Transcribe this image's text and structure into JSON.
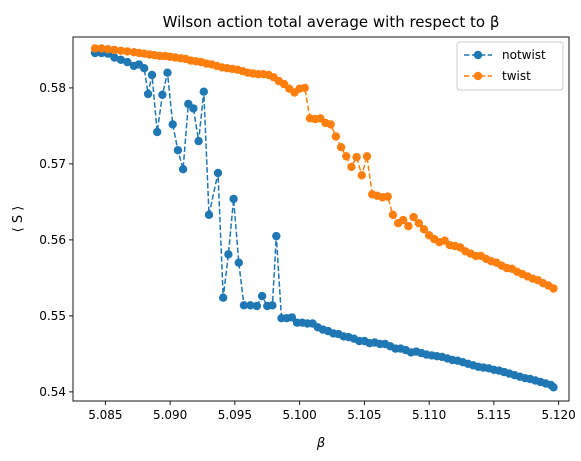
{
  "chart_data": {
    "type": "line",
    "title": "Wilson action total average with respect to β",
    "xlabel": "β",
    "ylabel": "⟨ S ⟩",
    "xlim": [
      5.0825,
      5.1208
    ],
    "ylim": [
      0.5388,
      0.5867
    ],
    "xticks": [
      5.085,
      5.09,
      5.095,
      5.1,
      5.105,
      5.11,
      5.115,
      5.12
    ],
    "xtick_labels": [
      "5.085",
      "5.090",
      "5.095",
      "5.100",
      "5.105",
      "5.110",
      "5.115",
      "5.120"
    ],
    "yticks": [
      0.54,
      0.55,
      0.56,
      0.57,
      0.58
    ],
    "ytick_labels": [
      "0.54",
      "0.55",
      "0.56",
      "0.57",
      "0.58"
    ],
    "grid": false,
    "legend_position": "top-right",
    "series": [
      {
        "name": "notwist",
        "color": "#1f77b4",
        "style": "dashed line with circle markers",
        "points": [
          [
            5.0842,
            0.5846
          ],
          [
            5.0847,
            0.5846
          ],
          [
            5.0852,
            0.5845
          ],
          [
            5.0857,
            0.584
          ],
          [
            5.0862,
            0.5837
          ],
          [
            5.0867,
            0.5834
          ],
          [
            5.0872,
            0.5829
          ],
          [
            5.0876,
            0.5831
          ],
          [
            5.088,
            0.5826
          ],
          [
            5.0883,
            0.5792
          ],
          [
            5.0886,
            0.5817
          ],
          [
            5.089,
            0.5742
          ],
          [
            5.0894,
            0.5791
          ],
          [
            5.0898,
            0.582
          ],
          [
            5.0902,
            0.5752
          ],
          [
            5.0906,
            0.5718
          ],
          [
            5.091,
            0.5693
          ],
          [
            5.0914,
            0.5779
          ],
          [
            5.0918,
            0.5773
          ],
          [
            5.0922,
            0.573
          ],
          [
            5.0926,
            0.5795
          ],
          [
            5.093,
            0.5633
          ],
          [
            5.0937,
            0.5688
          ],
          [
            5.0941,
            0.5524
          ],
          [
            5.0945,
            0.5581
          ],
          [
            5.0949,
            0.5654
          ],
          [
            5.0953,
            0.557
          ],
          [
            5.0957,
            0.5514
          ],
          [
            5.0962,
            0.5514
          ],
          [
            5.0967,
            0.5513
          ],
          [
            5.0971,
            0.5526
          ],
          [
            5.0975,
            0.5513
          ],
          [
            5.0979,
            0.5514
          ],
          [
            5.0982,
            0.5605
          ],
          [
            5.0986,
            0.5497
          ],
          [
            5.099,
            0.5497
          ],
          [
            5.0994,
            0.5498
          ],
          [
            5.0998,
            0.5491
          ],
          [
            5.1002,
            0.5491
          ],
          [
            5.1006,
            0.549
          ],
          [
            5.101,
            0.549
          ],
          [
            5.1014,
            0.5485
          ],
          [
            5.1018,
            0.5482
          ],
          [
            5.1022,
            0.548
          ],
          [
            5.1026,
            0.5477
          ],
          [
            5.103,
            0.5476
          ],
          [
            5.1034,
            0.5473
          ],
          [
            5.1038,
            0.5472
          ],
          [
            5.1042,
            0.547
          ],
          [
            5.1046,
            0.5467
          ],
          [
            5.105,
            0.5467
          ],
          [
            5.1054,
            0.5464
          ],
          [
            5.1058,
            0.5465
          ],
          [
            5.1062,
            0.5463
          ],
          [
            5.1066,
            0.5463
          ],
          [
            5.107,
            0.546
          ],
          [
            5.1074,
            0.5457
          ],
          [
            5.1078,
            0.5457
          ],
          [
            5.1082,
            0.5455
          ],
          [
            5.1086,
            0.5452
          ],
          [
            5.109,
            0.5453
          ],
          [
            5.1094,
            0.5451
          ],
          [
            5.1098,
            0.5449
          ],
          [
            5.1102,
            0.5448
          ],
          [
            5.1106,
            0.5447
          ],
          [
            5.111,
            0.5446
          ],
          [
            5.1114,
            0.5444
          ],
          [
            5.1118,
            0.5442
          ],
          [
            5.1122,
            0.5441
          ],
          [
            5.1126,
            0.5439
          ],
          [
            5.113,
            0.5437
          ],
          [
            5.1134,
            0.5435
          ],
          [
            5.1138,
            0.5433
          ],
          [
            5.1142,
            0.5432
          ],
          [
            5.1146,
            0.5431
          ],
          [
            5.115,
            0.5429
          ],
          [
            5.1154,
            0.5428
          ],
          [
            5.1158,
            0.5426
          ],
          [
            5.1162,
            0.5424
          ],
          [
            5.1166,
            0.5422
          ],
          [
            5.117,
            0.542
          ],
          [
            5.1174,
            0.5418
          ],
          [
            5.1178,
            0.5417
          ],
          [
            5.1182,
            0.5415
          ],
          [
            5.1186,
            0.5413
          ],
          [
            5.119,
            0.5411
          ],
          [
            5.1194,
            0.5409
          ],
          [
            5.1196,
            0.5406
          ]
        ]
      },
      {
        "name": "twist",
        "color": "#ff7f0e",
        "style": "dashed line with circle markers",
        "points": [
          [
            5.0842,
            0.5852
          ],
          [
            5.0847,
            0.5852
          ],
          [
            5.0852,
            0.5851
          ],
          [
            5.0857,
            0.585
          ],
          [
            5.0862,
            0.5849
          ],
          [
            5.0867,
            0.5848
          ],
          [
            5.0872,
            0.5847
          ],
          [
            5.0876,
            0.5846
          ],
          [
            5.088,
            0.5845
          ],
          [
            5.0884,
            0.5844
          ],
          [
            5.0888,
            0.5843
          ],
          [
            5.0892,
            0.5842
          ],
          [
            5.0896,
            0.5842
          ],
          [
            5.09,
            0.5841
          ],
          [
            5.0904,
            0.584
          ],
          [
            5.0908,
            0.5839
          ],
          [
            5.0912,
            0.5838
          ],
          [
            5.0916,
            0.5836
          ],
          [
            5.092,
            0.5835
          ],
          [
            5.0924,
            0.5834
          ],
          [
            5.0928,
            0.5832
          ],
          [
            5.0932,
            0.5831
          ],
          [
            5.0936,
            0.5829
          ],
          [
            5.094,
            0.5827
          ],
          [
            5.0944,
            0.5826
          ],
          [
            5.0948,
            0.5825
          ],
          [
            5.0952,
            0.5824
          ],
          [
            5.0956,
            0.5822
          ],
          [
            5.096,
            0.582
          ],
          [
            5.0964,
            0.5819
          ],
          [
            5.0968,
            0.5818
          ],
          [
            5.0972,
            0.5818
          ],
          [
            5.0976,
            0.5817
          ],
          [
            5.098,
            0.5814
          ],
          [
            5.0984,
            0.5809
          ],
          [
            5.0988,
            0.5805
          ],
          [
            5.0992,
            0.5799
          ],
          [
            5.0996,
            0.5794
          ],
          [
            5.1,
            0.5799
          ],
          [
            5.1004,
            0.58
          ],
          [
            5.1008,
            0.576
          ],
          [
            5.1012,
            0.5759
          ],
          [
            5.1016,
            0.576
          ],
          [
            5.102,
            0.5754
          ],
          [
            5.1024,
            0.5752
          ],
          [
            5.1028,
            0.5736
          ],
          [
            5.1032,
            0.5722
          ],
          [
            5.1036,
            0.571
          ],
          [
            5.104,
            0.5696
          ],
          [
            5.1044,
            0.5709
          ],
          [
            5.1048,
            0.5685
          ],
          [
            5.1052,
            0.571
          ],
          [
            5.1056,
            0.566
          ],
          [
            5.106,
            0.5658
          ],
          [
            5.1064,
            0.5656
          ],
          [
            5.1068,
            0.5657
          ],
          [
            5.1072,
            0.5633
          ],
          [
            5.1076,
            0.5622
          ],
          [
            5.108,
            0.5626
          ],
          [
            5.1084,
            0.5618
          ],
          [
            5.1088,
            0.563
          ],
          [
            5.1092,
            0.5622
          ],
          [
            5.1096,
            0.5614
          ],
          [
            5.11,
            0.5606
          ],
          [
            5.1104,
            0.5601
          ],
          [
            5.1108,
            0.5597
          ],
          [
            5.1112,
            0.5599
          ],
          [
            5.1116,
            0.5593
          ],
          [
            5.112,
            0.5592
          ],
          [
            5.1124,
            0.559
          ],
          [
            5.1128,
            0.5585
          ],
          [
            5.1132,
            0.5582
          ],
          [
            5.1136,
            0.5579
          ],
          [
            5.114,
            0.5579
          ],
          [
            5.1144,
            0.5575
          ],
          [
            5.1148,
            0.5572
          ],
          [
            5.1152,
            0.557
          ],
          [
            5.1156,
            0.5566
          ],
          [
            5.116,
            0.5563
          ],
          [
            5.1164,
            0.5562
          ],
          [
            5.1168,
            0.5558
          ],
          [
            5.1172,
            0.5555
          ],
          [
            5.1176,
            0.5552
          ],
          [
            5.118,
            0.5549
          ],
          [
            5.1184,
            0.5547
          ],
          [
            5.1188,
            0.5543
          ],
          [
            5.1192,
            0.554
          ],
          [
            5.1196,
            0.5536
          ]
        ]
      }
    ]
  }
}
